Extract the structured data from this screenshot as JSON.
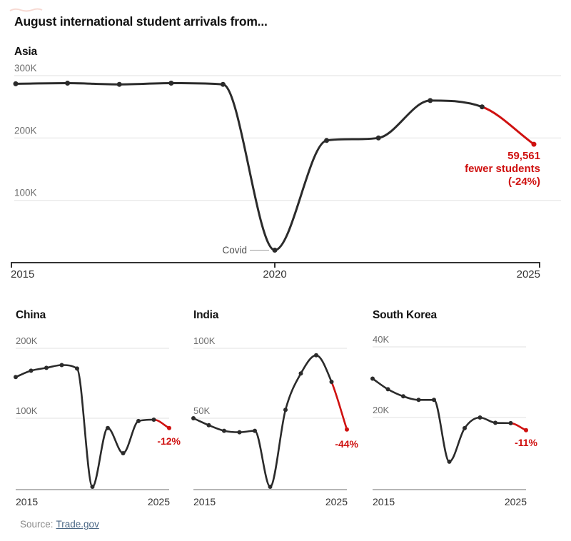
{
  "figure": {
    "title": "August international student arrivals from..."
  },
  "source": {
    "prefix": "Source:",
    "link_text": "Trade.gov"
  },
  "colors": {
    "line": "#2b2b2b",
    "decline_red": "#cf1110",
    "gridline": "#e2e2e2",
    "axis": "#333333",
    "small_axis": "#9e9e9e",
    "label_gray": "#6e6e6e",
    "year_label": "#333333",
    "title": "#121212",
    "source_text": "#8a8a8a",
    "source_link": "#4a6785",
    "covid_label": "#4d4d4d",
    "background": "#ffffff"
  },
  "chart_data": [
    {
      "id": "asia",
      "type": "line",
      "title": "Asia",
      "unit": "students (thousands)",
      "x": [
        2015,
        2016,
        2017,
        2018,
        2019,
        2020,
        2021,
        2022,
        2023,
        2024,
        2025
      ],
      "values": [
        287,
        288,
        286,
        288,
        286,
        20,
        196,
        200,
        260,
        250,
        190
      ],
      "red_from_index": 9,
      "ylim": [
        0,
        310
      ],
      "grid": "on",
      "gridlines": [
        {
          "value": 300,
          "label": "300K"
        },
        {
          "value": 200,
          "label": "200K"
        },
        {
          "value": 100,
          "label": "100K"
        }
      ],
      "x_ticks": [
        {
          "value": 2015,
          "label": "2015"
        },
        {
          "value": 2020,
          "label": "2020"
        },
        {
          "value": 2025,
          "label": "2025"
        }
      ],
      "annotations": {
        "covid_label": "Covid",
        "covid_x": 2020,
        "end_lines": [
          "59,561",
          "fewer students",
          "(-24%)"
        ]
      }
    },
    {
      "id": "china",
      "type": "line",
      "title": "China",
      "unit": "students (thousands)",
      "x": [
        2015,
        2016,
        2017,
        2018,
        2019,
        2020,
        2021,
        2022,
        2023,
        2024,
        2025
      ],
      "values": [
        159,
        168,
        172,
        176,
        171,
        2,
        86,
        50,
        96,
        98,
        86
      ],
      "red_from_index": 9,
      "ylim": [
        0,
        205
      ],
      "grid": "on",
      "gridlines": [
        {
          "value": 200,
          "label": "200K"
        },
        {
          "value": 100,
          "label": "100K"
        }
      ],
      "x_ticks": [
        {
          "value": 2015,
          "label": "2015"
        },
        {
          "value": 2025,
          "label": "2025"
        }
      ],
      "annotations": {
        "end_label": "-12%"
      }
    },
    {
      "id": "india",
      "type": "line",
      "title": "India",
      "unit": "students (thousands)",
      "x": [
        2015,
        2016,
        2017,
        2018,
        2019,
        2020,
        2021,
        2022,
        2023,
        2024,
        2025
      ],
      "values": [
        50,
        45,
        41,
        40,
        41,
        1,
        56,
        82,
        95,
        76,
        42
      ],
      "red_from_index": 9,
      "ylim": [
        0,
        103
      ],
      "grid": "on",
      "gridlines": [
        {
          "value": 100,
          "label": "100K"
        },
        {
          "value": 50,
          "label": "50K"
        }
      ],
      "x_ticks": [
        {
          "value": 2015,
          "label": "2015"
        },
        {
          "value": 2025,
          "label": "2025"
        }
      ],
      "annotations": {
        "end_label": "-44%"
      }
    },
    {
      "id": "south_korea",
      "type": "line",
      "title": "South Korea",
      "unit": "students (thousands)",
      "x": [
        2015,
        2016,
        2017,
        2018,
        2019,
        2020,
        2021,
        2022,
        2023,
        2024,
        2025
      ],
      "values": [
        31,
        28,
        26,
        25,
        25,
        7.5,
        17,
        20,
        18.5,
        18.4,
        16.4
      ],
      "red_from_index": 9,
      "ylim": [
        0,
        41
      ],
      "grid": "on",
      "gridlines": [
        {
          "value": 40,
          "label": "40K"
        },
        {
          "value": 20,
          "label": "20K"
        }
      ],
      "x_ticks": [
        {
          "value": 2015,
          "label": "2015"
        },
        {
          "value": 2025,
          "label": "2025"
        }
      ],
      "annotations": {
        "end_label": "-11%"
      }
    }
  ]
}
